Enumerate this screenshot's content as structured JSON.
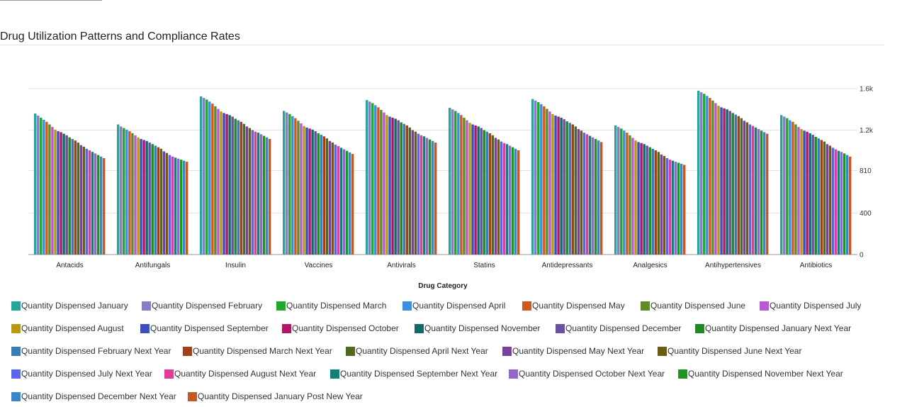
{
  "page": {
    "title": "Drug Utilization Patterns and Compliance Rates"
  },
  "chart_data": {
    "type": "bar",
    "title": "Drug Utilization Patterns and Compliance Rates",
    "xlabel": "Drug Category",
    "ylabel": "",
    "ylim": [
      0,
      1600
    ],
    "yticks": [
      "0",
      "400",
      "810",
      "1.2k",
      "1.6k"
    ],
    "ytick_values": [
      0,
      400,
      810,
      1200,
      1600
    ],
    "y_axis_position": "right",
    "grid": true,
    "legend_position": "bottom",
    "categories": [
      "Antacids",
      "Antifungals",
      "Insulin",
      "Vaccines",
      "Antivirals",
      "Statins",
      "Antidepressants",
      "Analgesics",
      "Antihypertensives",
      "Antibiotics"
    ],
    "series": [
      {
        "name": "Quantity Dispensed January",
        "color": "#26A69A",
        "values": [
          1360,
          1255,
          1525,
          1385,
          1490,
          1415,
          1500,
          1245,
          1580,
          1345
        ]
      },
      {
        "name": "Quantity Dispensed February",
        "color": "#8E79C7",
        "values": [
          1340,
          1235,
          1510,
          1370,
          1475,
          1400,
          1485,
          1230,
          1565,
          1330
        ]
      },
      {
        "name": "Quantity Dispensed March",
        "color": "#1FA82B",
        "values": [
          1320,
          1220,
          1495,
          1355,
          1460,
          1385,
          1470,
          1215,
          1550,
          1315
        ]
      },
      {
        "name": "Quantity Dispensed April",
        "color": "#3B8FE0",
        "values": [
          1300,
          1205,
          1475,
          1335,
          1440,
          1365,
          1450,
          1195,
          1530,
          1295
        ]
      },
      {
        "name": "Quantity Dispensed May",
        "color": "#D2591E",
        "values": [
          1280,
          1190,
          1455,
          1315,
          1420,
          1345,
          1430,
          1175,
          1510,
          1280
        ]
      },
      {
        "name": "Quantity Dispensed June",
        "color": "#5E8C2A",
        "values": [
          1255,
          1170,
          1430,
          1290,
          1395,
          1320,
          1405,
          1150,
          1485,
          1255
        ]
      },
      {
        "name": "Quantity Dispensed July",
        "color": "#B65BD4",
        "values": [
          1230,
          1150,
          1405,
          1265,
          1370,
          1295,
          1380,
          1125,
          1460,
          1230
        ]
      },
      {
        "name": "Quantity Dispensed August",
        "color": "#B59A12",
        "values": [
          1205,
          1130,
          1380,
          1240,
          1345,
          1270,
          1355,
          1100,
          1435,
          1210
        ]
      },
      {
        "name": "Quantity Dispensed September",
        "color": "#3C4FBF",
        "values": [
          1190,
          1115,
          1365,
          1225,
          1330,
          1255,
          1340,
          1085,
          1420,
          1195
        ]
      },
      {
        "name": "Quantity Dispensed October",
        "color": "#B0166A",
        "values": [
          1180,
          1105,
          1355,
          1215,
          1320,
          1245,
          1330,
          1075,
          1410,
          1185
        ]
      },
      {
        "name": "Quantity Dispensed November",
        "color": "#0F6B6B",
        "values": [
          1165,
          1095,
          1345,
          1205,
          1310,
          1235,
          1320,
          1065,
          1400,
          1170
        ]
      },
      {
        "name": "Quantity Dispensed December",
        "color": "#6B4FA0",
        "values": [
          1150,
          1080,
          1330,
          1190,
          1295,
          1220,
          1305,
          1050,
          1385,
          1155
        ]
      },
      {
        "name": "Quantity Dispensed January Next Year",
        "color": "#1E8A23",
        "values": [
          1130,
          1065,
          1310,
          1170,
          1275,
          1200,
          1285,
          1035,
          1365,
          1135
        ]
      },
      {
        "name": "Quantity Dispensed February Next Year",
        "color": "#3A7CB5",
        "values": [
          1115,
          1050,
          1295,
          1155,
          1260,
          1185,
          1270,
          1020,
          1350,
          1120
        ]
      },
      {
        "name": "Quantity Dispensed March Next Year",
        "color": "#A1401B",
        "values": [
          1100,
          1035,
          1280,
          1140,
          1245,
          1170,
          1255,
          1005,
          1335,
          1105
        ]
      },
      {
        "name": "Quantity Dispensed April Next Year",
        "color": "#4F6A1E",
        "values": [
          1080,
          1020,
          1260,
          1120,
          1225,
          1150,
          1235,
          990,
          1315,
          1090
        ]
      },
      {
        "name": "Quantity Dispensed May Next Year",
        "color": "#7B3FA1",
        "values": [
          1055,
          995,
          1235,
          1095,
          1200,
          1125,
          1210,
          965,
          1290,
          1065
        ]
      },
      {
        "name": "Quantity Dispensed June Next Year",
        "color": "#6D5B14",
        "values": [
          1040,
          980,
          1220,
          1080,
          1185,
          1110,
          1195,
          950,
          1275,
          1050
        ]
      },
      {
        "name": "Quantity Dispensed July Next Year",
        "color": "#5A66E8",
        "values": [
          1020,
          960,
          1200,
          1060,
          1165,
          1090,
          1175,
          930,
          1255,
          1030
        ]
      },
      {
        "name": "Quantity Dispensed August Next Year",
        "color": "#E03C9A",
        "values": [
          1005,
          945,
          1185,
          1045,
          1150,
          1075,
          1160,
          915,
          1240,
          1015
        ]
      },
      {
        "name": "Quantity Dispensed September Next Year",
        "color": "#12807A",
        "values": [
          990,
          935,
          1175,
          1030,
          1140,
          1065,
          1145,
          905,
          1225,
          1000
        ]
      },
      {
        "name": "Quantity Dispensed October Next Year",
        "color": "#9468C9",
        "values": [
          975,
          925,
          1160,
          1015,
          1125,
          1050,
          1130,
          895,
          1210,
          990
        ]
      },
      {
        "name": "Quantity Dispensed November Next Year",
        "color": "#1B961F",
        "values": [
          960,
          915,
          1145,
          1000,
          1110,
          1035,
          1115,
          885,
          1195,
          975
        ]
      },
      {
        "name": "Quantity Dispensed December Next Year",
        "color": "#3A86C8",
        "values": [
          945,
          905,
          1130,
          985,
          1095,
          1020,
          1100,
          875,
          1180,
          960
        ]
      },
      {
        "name": "Quantity Dispensed January Post New Year",
        "color": "#C25A22",
        "values": [
          930,
          895,
          1115,
          970,
          1080,
          1005,
          1085,
          865,
          1165,
          945
        ]
      }
    ]
  }
}
